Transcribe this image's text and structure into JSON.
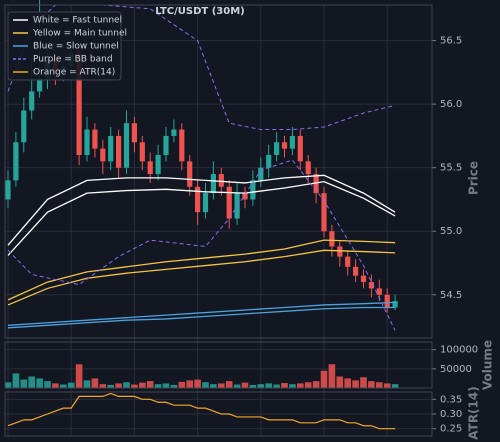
{
  "chart_data": {
    "type": "candlestick",
    "title": "LTC/USDT (30M)",
    "ylabel": "Price",
    "ylim": [
      54.16,
      56.78
    ],
    "yticks": [
      54.5,
      {
        "value": 55,
        "label": "55.0"
      },
      55.5,
      {
        "value": 56,
        "label": "56.0"
      },
      56.5
    ],
    "grid": true,
    "up_color": "#26a69a",
    "down_color": "#ef5350",
    "open": [
      55.25,
      55.4,
      55.7,
      55.95,
      56.1,
      56.2,
      56.35,
      56.25,
      56.3,
      56.4,
      55.6,
      55.8,
      55.65,
      55.55,
      55.75,
      55.5,
      55.85,
      55.7,
      55.55,
      55.45,
      55.6,
      55.75,
      55.8,
      55.55,
      55.35,
      55.15,
      55.3,
      55.45,
      55.35,
      55.1,
      55.3,
      55.25,
      55.4,
      55.5,
      55.6,
      55.7,
      55.65,
      55.75,
      55.55,
      55.45,
      55.3,
      55.0,
      54.88,
      54.8,
      54.72,
      54.65,
      54.6,
      54.55,
      54.5,
      54.4
    ],
    "high": [
      55.48,
      55.78,
      56.05,
      56.35,
      56.85,
      56.45,
      56.4,
      56.38,
      56.5,
      56.45,
      55.9,
      55.85,
      55.72,
      55.82,
      55.8,
      55.95,
      55.9,
      55.75,
      55.62,
      55.68,
      55.82,
      55.88,
      55.85,
      55.6,
      55.4,
      55.38,
      55.55,
      55.5,
      55.4,
      55.38,
      55.35,
      55.48,
      55.58,
      55.68,
      55.78,
      55.75,
      55.82,
      55.8,
      55.6,
      55.5,
      55.35,
      55.05,
      54.92,
      54.85,
      54.78,
      54.7,
      54.66,
      54.62,
      54.55,
      54.5
    ],
    "low": [
      55.18,
      55.35,
      55.62,
      55.88,
      56.05,
      56.12,
      56.15,
      56.18,
      56.22,
      55.52,
      55.55,
      55.58,
      55.45,
      55.48,
      55.42,
      55.45,
      55.62,
      55.48,
      55.38,
      55.4,
      55.55,
      55.7,
      55.48,
      55.28,
      55.05,
      55.1,
      55.25,
      55.28,
      55.02,
      55.05,
      55.18,
      55.2,
      55.35,
      55.42,
      55.55,
      55.58,
      55.6,
      55.48,
      55.38,
      55.22,
      54.95,
      54.8,
      54.72,
      54.65,
      54.6,
      54.55,
      54.48,
      54.45,
      54.36,
      54.38
    ],
    "close": [
      55.4,
      55.7,
      55.95,
      56.1,
      56.2,
      56.35,
      56.25,
      56.3,
      56.4,
      55.6,
      55.8,
      55.65,
      55.55,
      55.75,
      55.5,
      55.85,
      55.7,
      55.55,
      55.45,
      55.6,
      55.75,
      55.8,
      55.55,
      55.35,
      55.15,
      55.3,
      55.45,
      55.35,
      55.1,
      55.3,
      55.25,
      55.4,
      55.5,
      55.6,
      55.7,
      55.65,
      55.75,
      55.55,
      55.45,
      55.3,
      55.0,
      54.88,
      54.8,
      54.72,
      54.65,
      54.6,
      54.55,
      54.5,
      54.4,
      54.45
    ],
    "overlays": [
      {
        "legend": "White = Fast tunnel",
        "color": "#ffffff",
        "dashed": false,
        "lines": [
          {
            "x": [
              0,
              5,
              10,
              15,
              20,
              25,
              30,
              35,
              40,
              45,
              49
            ],
            "values": [
              54.89,
              55.25,
              55.4,
              55.42,
              55.42,
              55.4,
              55.38,
              55.42,
              55.44,
              55.3,
              55.15
            ]
          },
          {
            "x": [
              0,
              5,
              10,
              15,
              20,
              25,
              30,
              35,
              40,
              45,
              49
            ],
            "values": [
              54.81,
              55.15,
              55.3,
              55.32,
              55.33,
              55.31,
              55.3,
              55.34,
              55.39,
              55.26,
              55.12
            ]
          }
        ]
      },
      {
        "legend": "Yellow = Main tunnel",
        "color": "#f5c542",
        "dashed": false,
        "lines": [
          {
            "x": [
              0,
              5,
              10,
              15,
              20,
              25,
              30,
              35,
              40,
              45,
              49
            ],
            "values": [
              54.46,
              54.6,
              54.68,
              54.72,
              54.76,
              54.79,
              54.82,
              54.86,
              54.93,
              54.92,
              54.91
            ]
          },
          {
            "x": [
              0,
              5,
              10,
              15,
              20,
              25,
              30,
              35,
              40,
              45,
              49
            ],
            "values": [
              54.42,
              54.55,
              54.63,
              54.67,
              54.7,
              54.73,
              54.76,
              54.8,
              54.85,
              54.84,
              54.83
            ]
          }
        ]
      },
      {
        "legend": "Blue = Slow tunnel",
        "color": "#4aa3df",
        "dashed": false,
        "lines": [
          {
            "x": [
              0,
              5,
              10,
              15,
              20,
              25,
              30,
              35,
              40,
              45,
              49
            ],
            "values": [
              54.26,
              54.28,
              54.3,
              54.32,
              54.34,
              54.36,
              54.38,
              54.4,
              54.42,
              54.43,
              54.44
            ]
          },
          {
            "x": [
              0,
              5,
              10,
              15,
              20,
              25,
              30,
              35,
              40,
              45,
              49
            ],
            "values": [
              54.24,
              54.26,
              54.28,
              54.3,
              54.31,
              54.33,
              54.35,
              54.37,
              54.39,
              54.4,
              54.4
            ]
          }
        ]
      },
      {
        "legend": "Purple = BB band",
        "color": "#8b6cf0",
        "dashed": true,
        "lines": [
          {
            "x": [
              0,
              3,
              6,
              12,
              18,
              24,
              28,
              32,
              36,
              40,
              45,
              49
            ],
            "values": [
              56.1,
              56.6,
              56.78,
              56.78,
              56.75,
              56.5,
              55.85,
              55.8,
              55.8,
              55.82,
              55.93,
              55.99
            ]
          },
          {
            "x": [
              0,
              3,
              9,
              14,
              18,
              25,
              28,
              32,
              36,
              40,
              45,
              49
            ],
            "values": [
              54.85,
              54.66,
              54.58,
              54.8,
              54.93,
              54.88,
              55.1,
              55.48,
              55.56,
              55.24,
              54.73,
              54.22
            ]
          }
        ]
      }
    ],
    "volume_label": "Volume",
    "volume_ylim": [
      0,
      120000
    ],
    "volume_yticks": [
      50000,
      100000
    ],
    "volume": [
      15000,
      38000,
      22000,
      30000,
      25000,
      18000,
      12000,
      9000,
      14000,
      62000,
      20000,
      25000,
      10000,
      8000,
      12000,
      15000,
      9000,
      14000,
      18000,
      10000,
      12000,
      8000,
      16000,
      20000,
      22000,
      15000,
      10000,
      12000,
      18000,
      9000,
      14000,
      8000,
      10000,
      12000,
      9000,
      13000,
      10000,
      12000,
      15000,
      18000,
      45000,
      62000,
      30000,
      25000,
      20000,
      28000,
      18000,
      15000,
      12000,
      10000
    ],
    "atr_legend": "Orange = ATR(14)",
    "atr_label": "ATR(14)",
    "atr_color": "#f5a623",
    "atr_ylim": [
      0.225,
      0.375
    ],
    "atr_yticks": [
      0.25,
      {
        "value": 0.3,
        "label": "0.30"
      },
      0.35
    ],
    "atr": [
      0.26,
      0.27,
      0.28,
      0.28,
      0.29,
      0.3,
      0.31,
      0.32,
      0.32,
      0.36,
      0.36,
      0.36,
      0.36,
      0.37,
      0.36,
      0.36,
      0.36,
      0.35,
      0.35,
      0.34,
      0.34,
      0.33,
      0.33,
      0.33,
      0.32,
      0.32,
      0.31,
      0.3,
      0.3,
      0.29,
      0.29,
      0.29,
      0.29,
      0.28,
      0.28,
      0.28,
      0.28,
      0.27,
      0.27,
      0.27,
      0.28,
      0.28,
      0.28,
      0.27,
      0.27,
      0.26,
      0.26,
      0.25,
      0.25,
      0.25
    ]
  }
}
